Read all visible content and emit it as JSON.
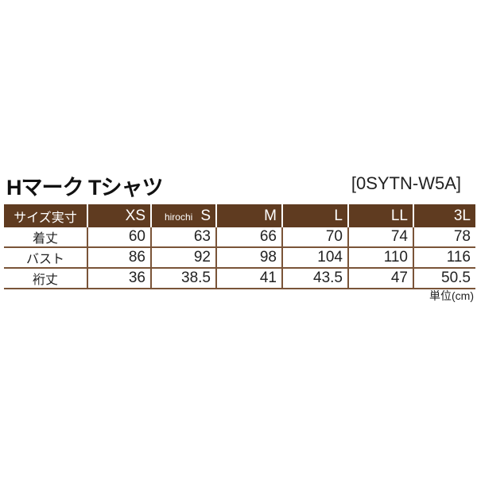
{
  "title": "Hマーク Tシャツ",
  "code": "[0SYTN-W5A]",
  "table": {
    "header": [
      "サイズ実寸",
      "XS",
      "S",
      "M",
      "L",
      "LL",
      "3L"
    ],
    "watermark": "hirochi",
    "rows": [
      [
        "着丈",
        "60",
        "63",
        "66",
        "70",
        "74",
        "78"
      ],
      [
        "バスト",
        "86",
        "92",
        "98",
        "104",
        "110",
        "116"
      ],
      [
        "裄丈",
        "36",
        "38.5",
        "41",
        "43.5",
        "47",
        "50.5"
      ]
    ]
  },
  "unit": "単位(cm)",
  "colors": {
    "header_bg": "#5f3b20"
  }
}
